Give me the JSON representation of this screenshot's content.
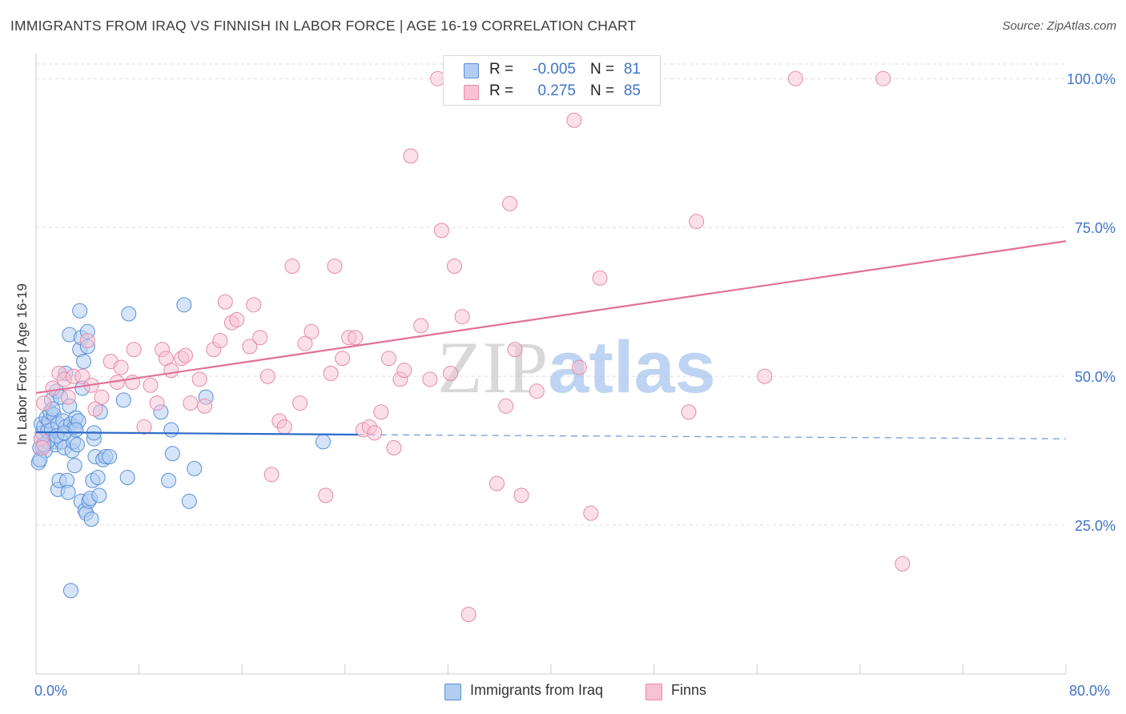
{
  "title": "IMMIGRANTS FROM IRAQ VS FINNISH IN LABOR FORCE | AGE 16-19 CORRELATION CHART",
  "source": "Source: ZipAtlas.com",
  "watermark": "ZIPatlas",
  "colors": {
    "blue_fill": "#b3cdf2",
    "blue_stroke": "#5a8fd8",
    "blue_line": "#2e6bc8",
    "pink_fill": "#f7c2d3",
    "pink_stroke": "#e58aa8",
    "pink_line": "#e0709a",
    "axis_label": "#3f74c9",
    "grid": "#dcdcdc"
  },
  "legend_top": [
    {
      "r_label": "R =",
      "r_value": "-0.005",
      "n_label": "N =",
      "n_value": "81"
    },
    {
      "r_label": "R =",
      "r_value": "0.275",
      "n_label": "N =",
      "n_value": "85"
    }
  ],
  "legend_bottom": [
    "Immigrants from Iraq",
    "Finns"
  ],
  "chart_data": {
    "type": "scatter",
    "title": "IMMIGRANTS FROM IRAQ VS FINNISH IN LABOR FORCE | AGE 16-19 CORRELATION CHART",
    "xlabel": "",
    "ylabel": "In Labor Force | Age 16-19",
    "xlim": [
      0,
      80
    ],
    "ylim": [
      0,
      105
    ],
    "x_tick_labels": [
      "0.0%",
      "80.0%"
    ],
    "y_ticks": [
      25,
      50,
      75,
      100
    ],
    "y_tick_labels": [
      "25.0%",
      "50.0%",
      "75.0%",
      "100.0%"
    ],
    "grid": true,
    "legend_placement": "bottom",
    "series": [
      {
        "name": "Immigrants from Iraq",
        "R": -0.005,
        "N": 81,
        "trend": {
          "x": [
            0,
            25,
            80
          ],
          "y": [
            40.6,
            40.2,
            39.5
          ],
          "solid_until_x": 25
        },
        "points": [
          [
            0.2,
            35.5
          ],
          [
            0.3,
            38.0
          ],
          [
            0.4,
            39.5
          ],
          [
            0.4,
            42.0
          ],
          [
            0.5,
            40.5
          ],
          [
            0.6,
            41.5
          ],
          [
            0.7,
            37.5
          ],
          [
            0.8,
            43.0
          ],
          [
            0.9,
            40.8
          ],
          [
            1.0,
            42.5
          ],
          [
            1.1,
            44.0
          ],
          [
            1.2,
            41.0
          ],
          [
            1.2,
            46.0
          ],
          [
            1.3,
            39.0
          ],
          [
            1.4,
            43.5
          ],
          [
            1.5,
            38.5
          ],
          [
            1.6,
            47.5
          ],
          [
            1.7,
            42.0
          ],
          [
            1.7,
            31.0
          ],
          [
            1.8,
            32.5
          ],
          [
            1.9,
            46.5
          ],
          [
            2.0,
            39.0
          ],
          [
            2.1,
            42.5
          ],
          [
            2.2,
            38.0
          ],
          [
            2.3,
            41.5
          ],
          [
            2.3,
            50.5
          ],
          [
            2.4,
            32.5
          ],
          [
            2.5,
            30.5
          ],
          [
            2.6,
            45.0
          ],
          [
            2.6,
            57.0
          ],
          [
            2.7,
            42.0
          ],
          [
            2.8,
            37.5
          ],
          [
            2.9,
            39.0
          ],
          [
            3.0,
            41.5
          ],
          [
            3.0,
            35.0
          ],
          [
            3.1,
            43.0
          ],
          [
            3.2,
            38.5
          ],
          [
            3.3,
            42.5
          ],
          [
            3.4,
            54.5
          ],
          [
            3.4,
            61.0
          ],
          [
            3.5,
            56.5
          ],
          [
            3.5,
            29.0
          ],
          [
            3.6,
            48.0
          ],
          [
            3.7,
            52.5
          ],
          [
            3.8,
            27.5
          ],
          [
            3.9,
            27.0
          ],
          [
            4.0,
            57.5
          ],
          [
            4.0,
            55.0
          ],
          [
            4.1,
            29.0
          ],
          [
            4.2,
            29.5
          ],
          [
            4.3,
            26.0
          ],
          [
            4.4,
            32.5
          ],
          [
            4.5,
            39.5
          ],
          [
            4.5,
            40.5
          ],
          [
            4.6,
            36.5
          ],
          [
            4.8,
            33.0
          ],
          [
            4.9,
            30.0
          ],
          [
            5.0,
            44.0
          ],
          [
            5.2,
            36.0
          ],
          [
            5.4,
            36.5
          ],
          [
            5.7,
            36.5
          ],
          [
            6.8,
            46.0
          ],
          [
            7.1,
            33.0
          ],
          [
            7.2,
            60.5
          ],
          [
            9.7,
            44.0
          ],
          [
            10.3,
            32.5
          ],
          [
            10.5,
            41.0
          ],
          [
            10.6,
            37.0
          ],
          [
            11.5,
            62.0
          ],
          [
            11.9,
            29.0
          ],
          [
            12.3,
            34.5
          ],
          [
            13.2,
            46.5
          ],
          [
            22.3,
            39.0
          ],
          [
            2.7,
            14.0
          ],
          [
            0.3,
            36.0
          ],
          [
            0.9,
            39.0
          ],
          [
            1.6,
            40.0
          ],
          [
            2.2,
            40.5
          ],
          [
            0.6,
            38.5
          ],
          [
            1.3,
            44.5
          ],
          [
            3.1,
            41.0
          ]
        ]
      },
      {
        "name": "Finns",
        "R": 0.275,
        "N": 85,
        "trend": {
          "x": [
            0,
            80
          ],
          "y": [
            47.2,
            72.7
          ]
        },
        "points": [
          [
            0.4,
            39.5
          ],
          [
            0.6,
            45.5
          ],
          [
            1.3,
            48.0
          ],
          [
            1.8,
            50.5
          ],
          [
            2.2,
            49.5
          ],
          [
            2.9,
            50.0
          ],
          [
            3.6,
            50.0
          ],
          [
            4.0,
            56.0
          ],
          [
            4.3,
            48.5
          ],
          [
            4.6,
            44.5
          ],
          [
            5.1,
            46.5
          ],
          [
            5.8,
            52.5
          ],
          [
            6.3,
            49.0
          ],
          [
            6.6,
            51.5
          ],
          [
            7.5,
            49.0
          ],
          [
            7.6,
            54.5
          ],
          [
            8.4,
            41.5
          ],
          [
            8.9,
            48.5
          ],
          [
            9.4,
            45.5
          ],
          [
            9.8,
            54.5
          ],
          [
            10.1,
            53.0
          ],
          [
            10.5,
            51.0
          ],
          [
            11.3,
            53.0
          ],
          [
            11.6,
            53.5
          ],
          [
            12.0,
            45.5
          ],
          [
            12.7,
            49.5
          ],
          [
            13.1,
            45.0
          ],
          [
            13.8,
            54.5
          ],
          [
            14.3,
            56.0
          ],
          [
            14.7,
            62.5
          ],
          [
            15.2,
            59.0
          ],
          [
            15.6,
            59.5
          ],
          [
            16.6,
            55.0
          ],
          [
            16.9,
            62.0
          ],
          [
            17.4,
            56.5
          ],
          [
            18.0,
            50.0
          ],
          [
            18.3,
            33.5
          ],
          [
            18.9,
            42.5
          ],
          [
            19.3,
            41.5
          ],
          [
            19.9,
            68.5
          ],
          [
            20.5,
            45.5
          ],
          [
            20.9,
            55.5
          ],
          [
            21.4,
            57.5
          ],
          [
            22.5,
            30.0
          ],
          [
            22.9,
            50.5
          ],
          [
            23.2,
            68.5
          ],
          [
            23.8,
            53.0
          ],
          [
            24.3,
            56.5
          ],
          [
            24.8,
            56.5
          ],
          [
            25.4,
            41.0
          ],
          [
            25.9,
            41.5
          ],
          [
            26.3,
            40.5
          ],
          [
            26.8,
            44.0
          ],
          [
            27.4,
            53.0
          ],
          [
            27.8,
            38.0
          ],
          [
            28.3,
            49.5
          ],
          [
            28.6,
            51.0
          ],
          [
            29.1,
            87.0
          ],
          [
            29.9,
            58.5
          ],
          [
            30.6,
            49.5
          ],
          [
            31.2,
            100.0
          ],
          [
            31.5,
            74.5
          ],
          [
            32.2,
            50.5
          ],
          [
            32.5,
            68.5
          ],
          [
            33.1,
            60.0
          ],
          [
            33.6,
            10.0
          ],
          [
            34.5,
            100.0
          ],
          [
            35.8,
            32.0
          ],
          [
            36.5,
            45.0
          ],
          [
            36.8,
            79.0
          ],
          [
            37.2,
            54.5
          ],
          [
            37.7,
            30.0
          ],
          [
            38.9,
            47.5
          ],
          [
            41.8,
            93.0
          ],
          [
            42.2,
            51.5
          ],
          [
            43.1,
            27.0
          ],
          [
            43.8,
            66.5
          ],
          [
            50.7,
            44.0
          ],
          [
            51.3,
            76.0
          ],
          [
            56.6,
            50.0
          ],
          [
            59.0,
            100.0
          ],
          [
            65.8,
            100.0
          ],
          [
            67.3,
            18.5
          ],
          [
            0.5,
            38.0
          ],
          [
            2.5,
            46.5
          ]
        ]
      }
    ]
  }
}
